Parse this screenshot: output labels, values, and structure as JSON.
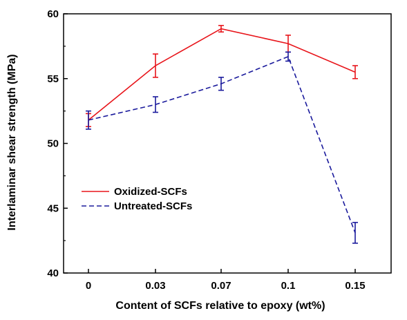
{
  "chart_data": {
    "type": "line",
    "xlabel": "Content of SCFs relative to epoxy (wt%)",
    "ylabel": "Interlaminar shear strength (MPa)",
    "categories": [
      "0",
      "0.03",
      "0.07",
      "0.1",
      "0.15"
    ],
    "ylim": [
      40,
      60
    ],
    "yticks": [
      "40",
      "45",
      "50",
      "55",
      "60"
    ],
    "legend_position": "lower-left",
    "grid": false,
    "series": [
      {
        "name": "Oxidized-SCFs",
        "color": "#e8141a",
        "line_style": "solid",
        "values": [
          51.8,
          56.0,
          58.85,
          57.7,
          55.5
        ],
        "errors": [
          0.5,
          0.9,
          0.25,
          0.65,
          0.5
        ]
      },
      {
        "name": "Untreated-SCFs",
        "color": "#1a1a9c",
        "line_style": "dashed",
        "values": [
          51.8,
          53.0,
          54.6,
          56.7,
          43.1
        ],
        "errors": [
          0.7,
          0.6,
          0.5,
          0.35,
          0.8
        ]
      }
    ]
  }
}
